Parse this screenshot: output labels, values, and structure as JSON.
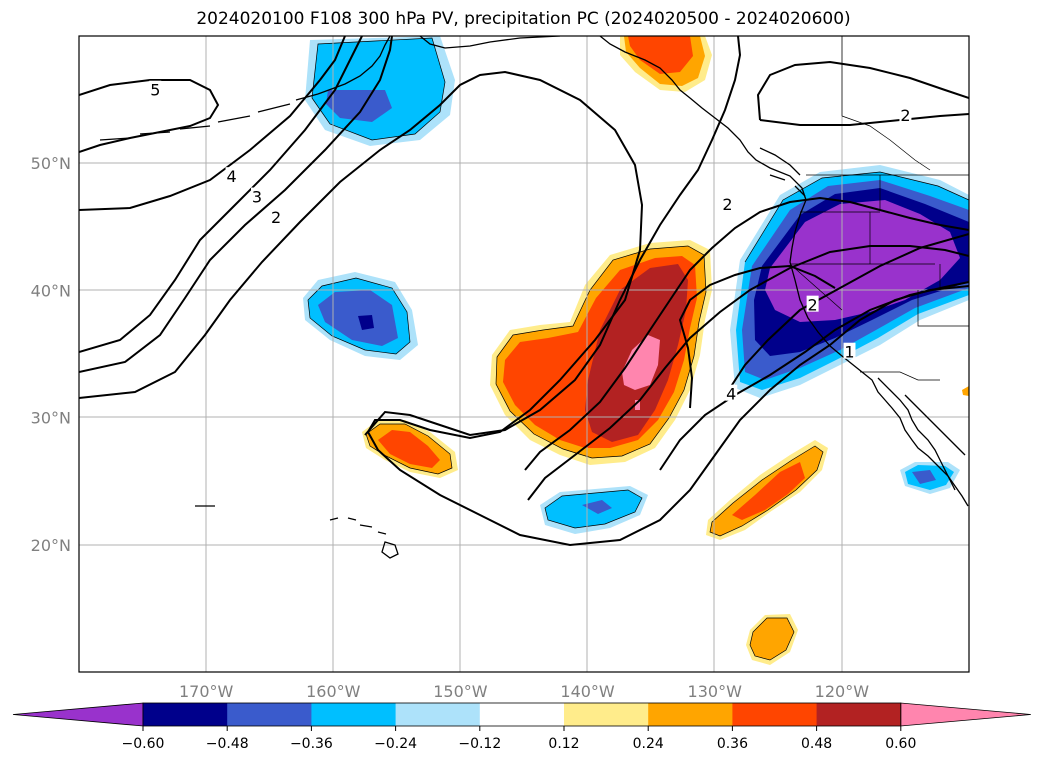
{
  "title": "2024020100 F108 300 hPa PV, precipitation PC (2024020500 - 2024020600)",
  "map": {
    "lon_range": [
      -180,
      -110
    ],
    "lat_range": [
      10,
      60
    ],
    "lon_ticks": [
      {
        "lon": -170,
        "label": "170°W"
      },
      {
        "lon": -160,
        "label": "160°W"
      },
      {
        "lon": -150,
        "label": "150°W"
      },
      {
        "lon": -140,
        "label": "140°W"
      },
      {
        "lon": -130,
        "label": "130°W"
      },
      {
        "lon": -120,
        "label": "120°W"
      }
    ],
    "lat_ticks": [
      {
        "lat": 50,
        "label": "50°N"
      },
      {
        "lat": 40,
        "label": "40°N"
      },
      {
        "lat": 30,
        "label": "30°N"
      },
      {
        "lat": 20,
        "label": "20°N"
      }
    ],
    "contour_labels": [
      {
        "text": "5",
        "lon": -174,
        "lat": 55.7
      },
      {
        "text": "4",
        "lon": -168,
        "lat": 48.9
      },
      {
        "text": "3",
        "lon": -166,
        "lat": 47.3
      },
      {
        "text": "2",
        "lon": -164.5,
        "lat": 45.7
      },
      {
        "text": "2",
        "lon": -115,
        "lat": 53.7
      },
      {
        "text": "2",
        "lon": -129,
        "lat": 46.7
      },
      {
        "text": "2",
        "lon": -122.3,
        "lat": 38.8
      },
      {
        "text": "4",
        "lon": -128.7,
        "lat": 31.8
      },
      {
        "text": "1",
        "lon": -119.4,
        "lat": 35.1
      }
    ]
  },
  "colorbar": {
    "colors": [
      "#9932CC",
      "#00008B",
      "#3A5BCC",
      "#00BFFF",
      "#ADE2FA",
      "#FFFFFF",
      "#FFEC8B",
      "#FFA500",
      "#FF4500",
      "#B22222",
      "#FF85AE"
    ],
    "tick_labels": [
      "−0.60",
      "−0.48",
      "−0.36",
      "−0.24",
      "−0.12",
      "0.12",
      "0.24",
      "0.36",
      "0.48",
      "0.60"
    ]
  }
}
